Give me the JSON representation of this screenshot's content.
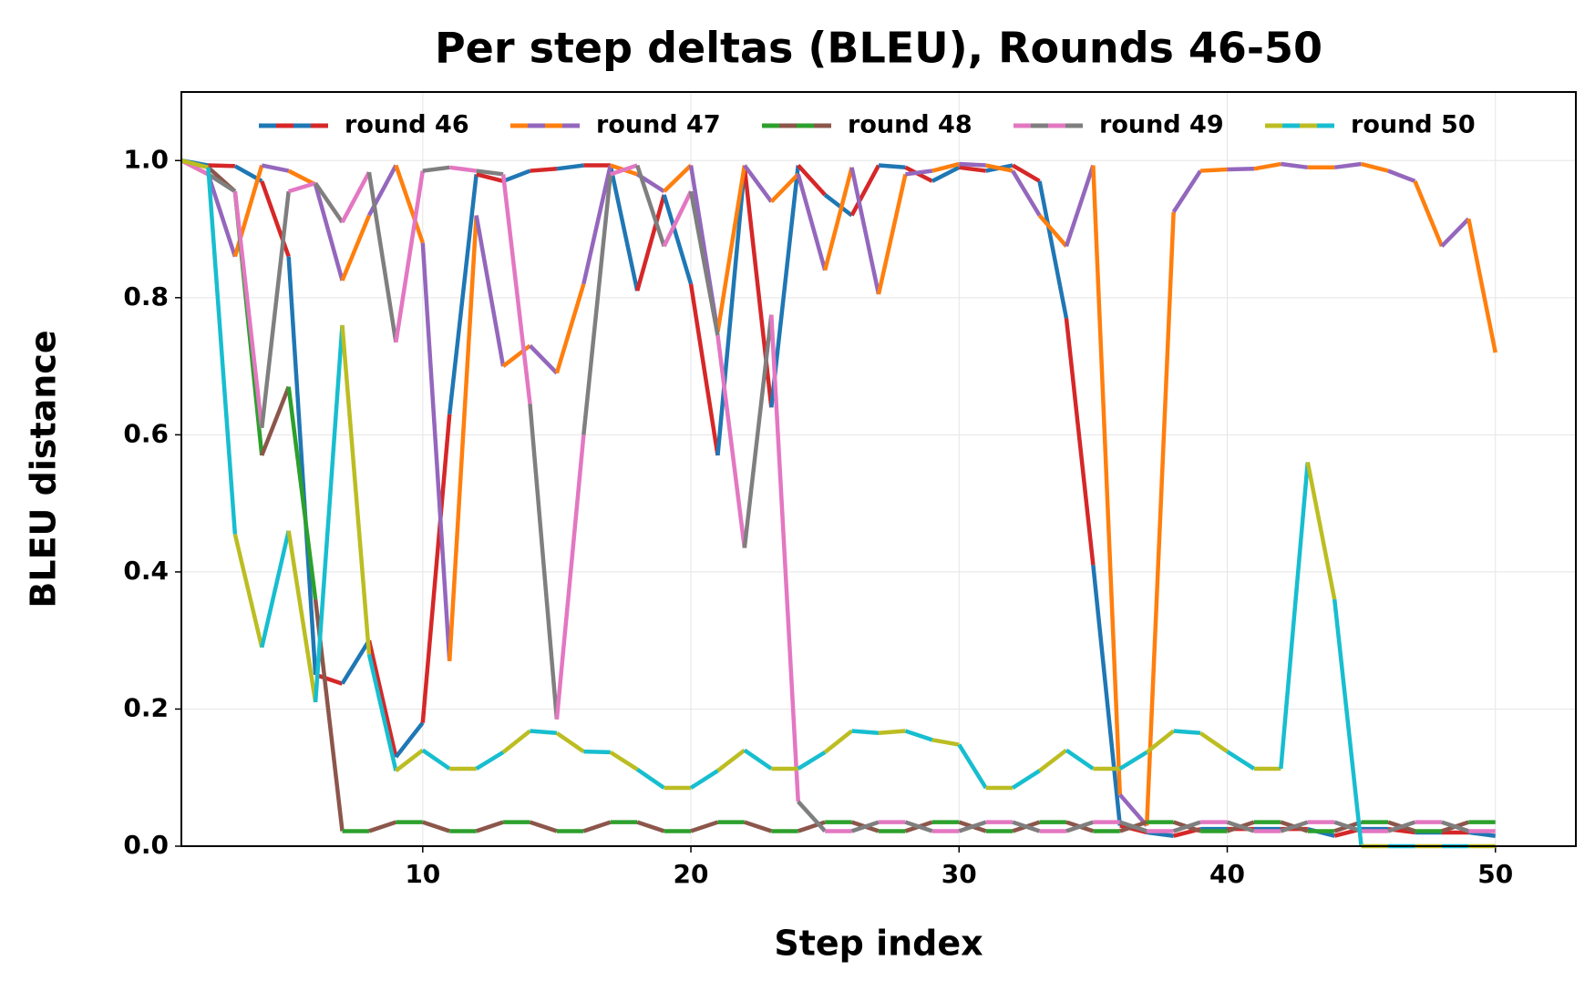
{
  "chart_data": {
    "type": "line",
    "title": "Per step deltas (BLEU), Rounds 46-50",
    "x_label": "Step index",
    "y_label": "BLEU distance",
    "x": [
      1,
      2,
      3,
      4,
      5,
      6,
      7,
      8,
      9,
      10,
      11,
      12,
      13,
      14,
      15,
      16,
      17,
      18,
      19,
      20,
      21,
      22,
      23,
      24,
      25,
      26,
      27,
      28,
      29,
      30,
      31,
      32,
      33,
      34,
      35,
      36,
      37,
      38,
      39,
      40,
      41,
      42,
      43,
      44,
      45,
      46,
      47,
      48,
      49,
      50
    ],
    "series": [
      {
        "name": "round 46",
        "colors": [
          "#1f77b4",
          "#d62728"
        ],
        "values": [
          1.0,
          0.993,
          0.992,
          0.97,
          0.86,
          0.25,
          0.237,
          0.3,
          0.13,
          0.18,
          0.63,
          0.98,
          0.97,
          0.985,
          0.988,
          0.993,
          0.993,
          0.81,
          0.95,
          0.82,
          0.57,
          0.99,
          0.64,
          0.993,
          0.95,
          0.92,
          0.993,
          0.99,
          0.97,
          0.99,
          0.985,
          0.993,
          0.97,
          0.77,
          0.41,
          0.03,
          0.02,
          0.015,
          0.025,
          0.025,
          0.025,
          0.025,
          0.025,
          0.015,
          0.025,
          0.025,
          0.02,
          0.02,
          0.02,
          0.015
        ]
      },
      {
        "name": "round 47",
        "colors": [
          "#ff7f0e",
          "#9467bd"
        ],
        "values": [
          1.0,
          0.98,
          0.86,
          0.993,
          0.985,
          0.965,
          0.825,
          0.92,
          0.993,
          0.88,
          0.27,
          0.92,
          0.7,
          0.73,
          0.69,
          0.82,
          0.993,
          0.98,
          0.955,
          0.993,
          0.75,
          0.993,
          0.94,
          0.98,
          0.84,
          0.99,
          0.805,
          0.98,
          0.985,
          0.995,
          0.993,
          0.985,
          0.92,
          0.875,
          0.993,
          0.075,
          0.03,
          0.925,
          0.985,
          0.987,
          0.988,
          0.995,
          0.99,
          0.99,
          0.995,
          0.985,
          0.97,
          0.875,
          0.915,
          0.72
        ]
      },
      {
        "name": "round 48",
        "colors": [
          "#2ca02c",
          "#8c564b"
        ],
        "values": [
          1.0,
          0.99,
          0.955,
          0.57,
          0.67,
          0.36,
          0.022,
          0.022,
          0.035,
          0.035,
          0.022,
          0.022,
          0.035,
          0.035,
          0.022,
          0.022,
          0.035,
          0.035,
          0.022,
          0.022,
          0.035,
          0.035,
          0.022,
          0.022,
          0.035,
          0.035,
          0.022,
          0.022,
          0.035,
          0.035,
          0.022,
          0.022,
          0.035,
          0.035,
          0.022,
          0.022,
          0.035,
          0.035,
          0.022,
          0.022,
          0.035,
          0.035,
          0.022,
          0.022,
          0.035,
          0.035,
          0.022,
          0.022,
          0.035,
          0.035
        ]
      },
      {
        "name": "round 49",
        "colors": [
          "#e377c2",
          "#7f7f7f"
        ],
        "values": [
          1.0,
          0.98,
          0.955,
          0.61,
          0.955,
          0.967,
          0.91,
          0.983,
          0.735,
          0.985,
          0.99,
          0.985,
          0.98,
          0.645,
          0.185,
          0.6,
          0.98,
          0.993,
          0.875,
          0.955,
          0.745,
          0.435,
          0.775,
          0.065,
          0.022,
          0.022,
          0.035,
          0.035,
          0.022,
          0.022,
          0.035,
          0.035,
          0.022,
          0.022,
          0.035,
          0.035,
          0.022,
          0.022,
          0.035,
          0.035,
          0.022,
          0.022,
          0.035,
          0.035,
          0.022,
          0.022,
          0.035,
          0.035,
          0.022,
          0.022
        ]
      },
      {
        "name": "round 50",
        "colors": [
          "#bcbd22",
          "#17becf"
        ],
        "values": [
          1.0,
          0.99,
          0.455,
          0.29,
          0.46,
          0.21,
          0.76,
          0.28,
          0.11,
          0.14,
          0.113,
          0.113,
          0.137,
          0.168,
          0.165,
          0.138,
          0.137,
          0.112,
          0.085,
          0.085,
          0.11,
          0.14,
          0.113,
          0.113,
          0.137,
          0.168,
          0.165,
          0.168,
          0.155,
          0.148,
          0.085,
          0.085,
          0.11,
          0.14,
          0.113,
          0.113,
          0.137,
          0.168,
          0.165,
          0.138,
          0.113,
          0.113,
          0.56,
          0.36,
          0.0,
          0.0,
          0.0,
          0.0,
          0.0,
          0.0
        ]
      }
    ],
    "xlim": [
      1,
      53
    ],
    "ylim": [
      0,
      1.1
    ],
    "xticks": [
      10,
      20,
      30,
      40,
      50
    ],
    "yticks": [
      {
        "value": 0,
        "label": "0.0"
      },
      0.2,
      0.4,
      0.6,
      0.8,
      {
        "value": 1,
        "label": "1.0"
      }
    ],
    "grid": true,
    "legend": "upper center"
  }
}
